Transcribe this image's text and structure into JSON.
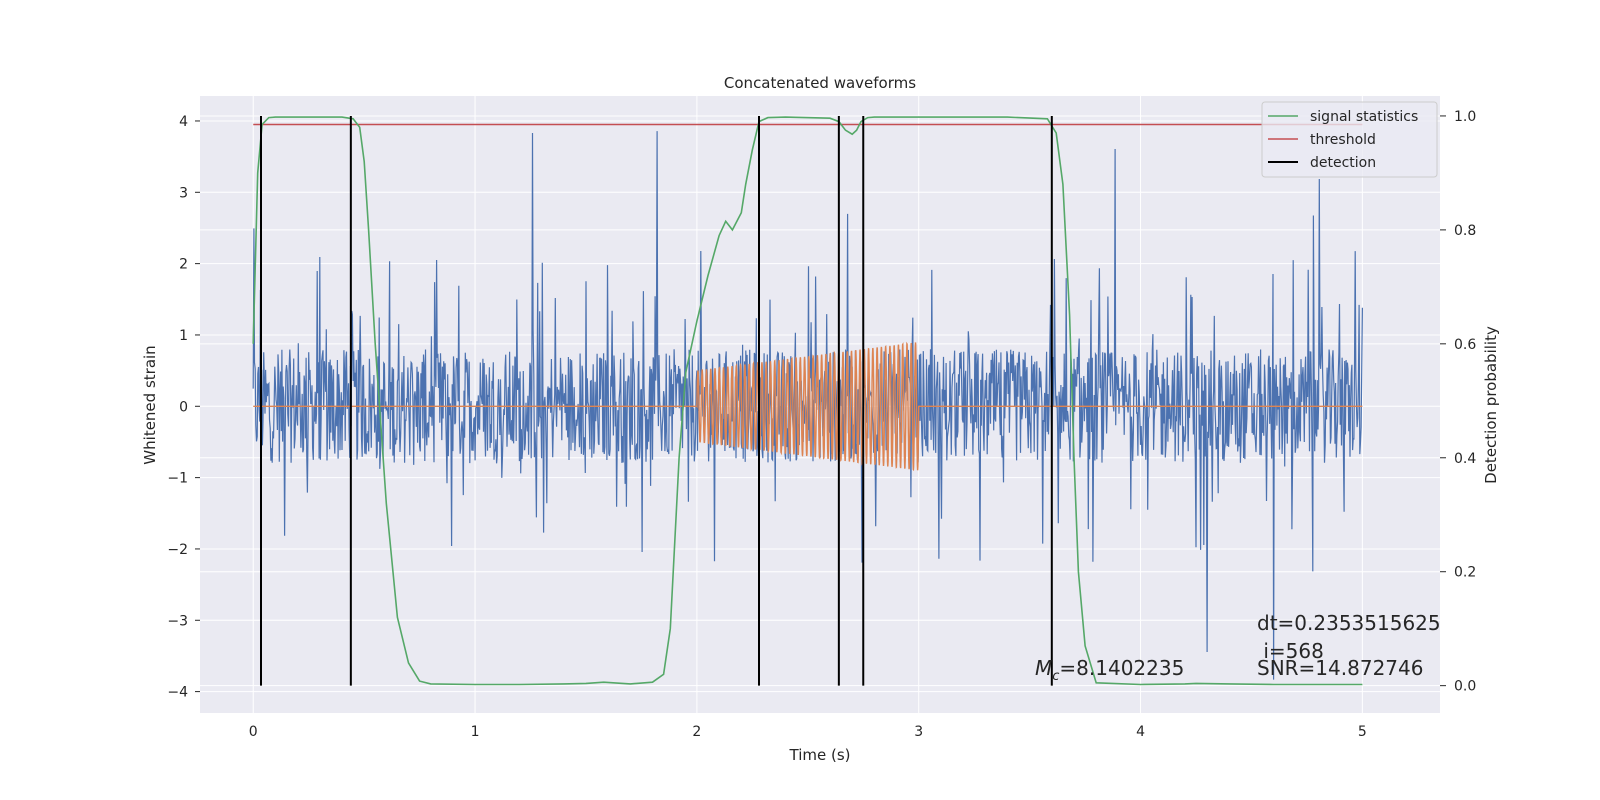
{
  "chart_data": {
    "type": "line",
    "title": "Concatenated waveforms",
    "xlabel": "Time (s)",
    "ylabel": "Whitened strain",
    "y2label": "Detection probability",
    "xlim": [
      -0.24,
      5.35
    ],
    "ylim": [
      -4.3,
      4.35
    ],
    "y2lim": [
      -0.048,
      1.035
    ],
    "x_ticks": [
      0,
      1,
      2,
      3,
      4,
      5
    ],
    "y_ticks": [
      -4,
      -3,
      -2,
      -1,
      0,
      1,
      2,
      3,
      4
    ],
    "y2_ticks": [
      0.0,
      0.2,
      0.4,
      0.6,
      0.8,
      1.0
    ],
    "y2_tick_labels": [
      "0.0",
      "0.2",
      "0.4",
      "0.6",
      "0.8",
      "1.0"
    ],
    "grid": true,
    "legend_position": "top-right",
    "colors": {
      "strain": "#4c72b0",
      "injected_signal": "#dd8452",
      "signal_statistics": "#55a868",
      "threshold": "#c44e52",
      "detection": "#000000",
      "plot_background": "#eaeaf2",
      "grid": "#ffffff"
    },
    "series": [
      {
        "name": "",
        "axis": "left",
        "style": "noise",
        "x_range": [
          0,
          5
        ],
        "envelope_abs": 0.8,
        "peak_abs_typical": 2.2,
        "peak_abs_max": 3.9
      },
      {
        "name": "",
        "axis": "left",
        "style": "chirp",
        "x_range": [
          2,
          3
        ],
        "amplitude_start": 0.5,
        "amplitude_end": 0.9,
        "cycles": 52
      },
      {
        "name": "signal statistics",
        "axis": "right",
        "x": [
          0.0,
          0.02,
          0.04,
          0.07,
          0.1,
          0.2,
          0.3,
          0.4,
          0.45,
          0.48,
          0.5,
          0.52,
          0.55,
          0.6,
          0.65,
          0.7,
          0.75,
          0.8,
          1.0,
          1.2,
          1.4,
          1.5,
          1.58,
          1.7,
          1.8,
          1.85,
          1.88,
          1.9,
          1.92,
          1.95,
          2.0,
          2.05,
          2.1,
          2.13,
          2.16,
          2.2,
          2.22,
          2.25,
          2.28,
          2.32,
          2.4,
          2.6,
          2.64,
          2.67,
          2.7,
          2.72,
          2.74,
          2.77,
          2.8,
          2.9,
          3.0,
          3.05,
          3.1,
          3.2,
          3.4,
          3.58,
          3.62,
          3.65,
          3.68,
          3.7,
          3.72,
          3.75,
          3.8,
          4.0,
          4.2,
          4.25,
          4.4,
          4.6,
          4.8,
          5.0
        ],
        "values": [
          0.6,
          0.9,
          0.985,
          0.997,
          0.998,
          0.998,
          0.998,
          0.998,
          0.995,
          0.98,
          0.92,
          0.8,
          0.6,
          0.32,
          0.12,
          0.04,
          0.008,
          0.003,
          0.002,
          0.002,
          0.003,
          0.004,
          0.006,
          0.003,
          0.006,
          0.02,
          0.1,
          0.25,
          0.4,
          0.55,
          0.64,
          0.72,
          0.79,
          0.815,
          0.8,
          0.83,
          0.88,
          0.94,
          0.99,
          0.997,
          0.998,
          0.996,
          0.99,
          0.975,
          0.968,
          0.975,
          0.99,
          0.997,
          0.998,
          0.998,
          0.998,
          0.998,
          0.998,
          0.998,
          0.998,
          0.995,
          0.97,
          0.88,
          0.65,
          0.4,
          0.2,
          0.07,
          0.005,
          0.002,
          0.003,
          0.004,
          0.003,
          0.002,
          0.002,
          0.002
        ]
      },
      {
        "name": "threshold",
        "axis": "right",
        "x": [
          0,
          5
        ],
        "values": [
          0.985,
          0.985
        ]
      },
      {
        "name": "detection",
        "axis": "right",
        "x": [
          0.035,
          0.44,
          2.28,
          2.64,
          2.75,
          3.6
        ],
        "range": [
          0,
          1
        ]
      }
    ],
    "annotations": {
      "mc_symbol": "M",
      "mc_subscript": "c",
      "mc_value": "=8.1402235",
      "dt": "dt=0.2353515625",
      "index": " i=568",
      "snr": "SNR=14.872746"
    }
  }
}
